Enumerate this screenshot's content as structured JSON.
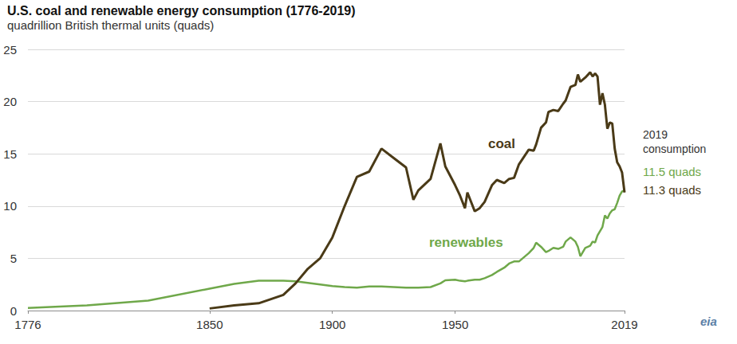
{
  "chart_data": {
    "type": "line",
    "title": "U.S. coal and renewable energy consumption (1776-2019)",
    "subtitle": "quadrillion British thermal units (quads)",
    "annotations": [
      "2019 consumption",
      "11.5 quads",
      "11.3 quads",
      "eia"
    ],
    "x": [
      1776,
      1800,
      1825,
      1850,
      1860,
      1870,
      1880,
      1885,
      1890,
      1895,
      1900,
      1905,
      1910,
      1915,
      1920,
      1925,
      1930,
      1933,
      1935,
      1940,
      1944,
      1946,
      1950,
      1952,
      1954,
      1955,
      1958,
      1960,
      1962,
      1965,
      1967,
      1970,
      1972,
      1974,
      1976,
      1980,
      1982,
      1983,
      1985,
      1987,
      1988,
      1990,
      1992,
      1994,
      1995,
      1997,
      1999,
      2000,
      2001,
      2003,
      2005,
      2006,
      2007,
      2008,
      2009,
      2010,
      2011,
      2012,
      2013,
      2014,
      2015,
      2016,
      2017,
      2018,
      2019
    ],
    "series": [
      {
        "name": "coal",
        "color": "#4a3a17",
        "values": [
          null,
          null,
          null,
          0.2,
          0.5,
          0.7,
          1.5,
          2.6,
          4.0,
          5.0,
          7.0,
          10.0,
          12.8,
          13.3,
          15.5,
          14.6,
          13.7,
          10.6,
          11.5,
          12.6,
          16.0,
          13.8,
          12.0,
          11.0,
          9.8,
          11.3,
          9.5,
          9.8,
          10.4,
          12.0,
          12.5,
          12.2,
          12.6,
          12.7,
          14.0,
          15.4,
          15.3,
          15.9,
          17.5,
          18.0,
          19.0,
          19.2,
          19.1,
          19.8,
          20.1,
          21.4,
          21.6,
          22.6,
          21.9,
          22.3,
          22.8,
          22.4,
          22.7,
          22.4,
          19.7,
          20.8,
          19.7,
          17.4,
          18.0,
          17.9,
          15.5,
          14.2,
          13.8,
          13.2,
          11.3
        ]
      },
      {
        "name": "renewables",
        "color": "#6fa84a",
        "values": [
          0.25,
          0.5,
          0.95,
          2.1,
          2.55,
          2.85,
          2.85,
          2.8,
          2.65,
          2.5,
          2.35,
          2.25,
          2.2,
          2.3,
          2.3,
          2.25,
          2.2,
          2.2,
          2.2,
          2.25,
          2.6,
          2.9,
          2.95,
          2.85,
          2.8,
          2.85,
          2.95,
          2.95,
          3.1,
          3.4,
          3.7,
          4.1,
          4.5,
          4.7,
          4.7,
          5.5,
          6.0,
          6.5,
          6.1,
          5.6,
          5.7,
          6.0,
          5.9,
          6.1,
          6.6,
          7.0,
          6.6,
          6.1,
          5.2,
          6.0,
          6.2,
          6.6,
          6.5,
          7.2,
          7.6,
          8.0,
          9.1,
          8.8,
          9.3,
          9.6,
          9.7,
          10.3,
          11.0,
          11.4,
          11.5
        ]
      }
    ],
    "xlim": [
      1776,
      2019
    ],
    "xticks": [
      1776,
      1850,
      1900,
      1950,
      2019
    ],
    "ylim": [
      0,
      25
    ],
    "yticks": [
      0,
      5,
      10,
      15,
      20,
      25
    ],
    "grid": true
  }
}
